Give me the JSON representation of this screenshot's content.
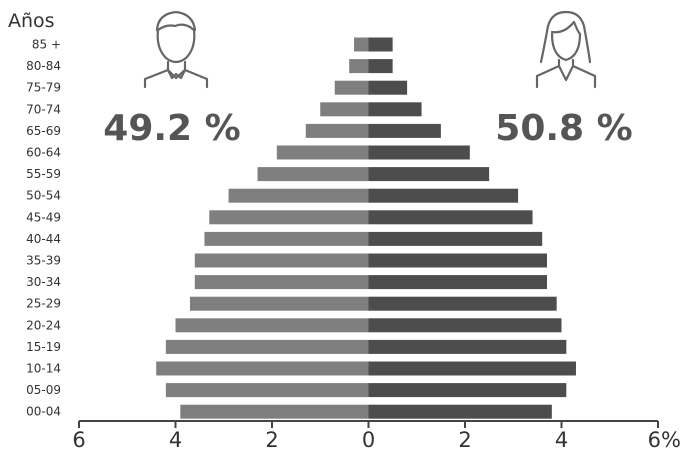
{
  "chart_data": {
    "type": "bar",
    "orientation": "horizontal-population-pyramid",
    "y_axis_title": "Años",
    "categories": [
      "85 +",
      "80-84",
      "75-79",
      "70-74",
      "65-69",
      "60-64",
      "55-59",
      "50-54",
      "45-49",
      "40-44",
      "35-39",
      "30-34",
      "25-29",
      "20-24",
      "15-19",
      "10-14",
      "05-09",
      "00-04"
    ],
    "series": [
      {
        "side": "left",
        "color": "#7f7f7f",
        "values": [
          0.3,
          0.4,
          0.7,
          1.0,
          1.3,
          1.9,
          2.3,
          2.9,
          3.3,
          3.4,
          3.6,
          3.6,
          3.7,
          4.0,
          4.2,
          4.4,
          4.2,
          3.9
        ]
      },
      {
        "side": "right",
        "color": "#4d4d4d",
        "values": [
          0.5,
          0.5,
          0.8,
          1.1,
          1.5,
          2.1,
          2.5,
          3.1,
          3.4,
          3.6,
          3.7,
          3.7,
          3.9,
          4.0,
          4.1,
          4.3,
          4.1,
          3.8
        ]
      }
    ],
    "xlim": [
      -6,
      6
    ],
    "x_ticks": [
      {
        "value": -6,
        "label": "6"
      },
      {
        "value": -4,
        "label": "4"
      },
      {
        "value": -2,
        "label": "2"
      },
      {
        "value": 0,
        "label": "0"
      },
      {
        "value": 2,
        "label": "2"
      },
      {
        "value": 4,
        "label": "4"
      },
      {
        "value": 6,
        "label": "6%"
      }
    ],
    "annotations": {
      "male_percent": "49.2 %",
      "female_percent": "50.8 %"
    },
    "icons": [
      "man-icon",
      "woman-icon"
    ],
    "grid": false
  }
}
